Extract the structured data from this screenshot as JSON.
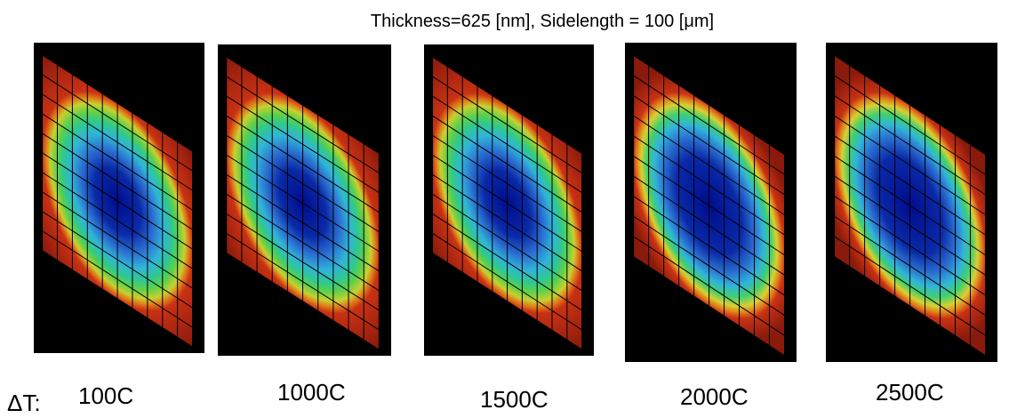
{
  "title": "Thickness=625 [nm], Sidelength = 100 [μm]",
  "delta_label": "ΔT:",
  "panels": [
    {
      "label": "100C"
    },
    {
      "label": "1000C"
    },
    {
      "label": "1500C"
    },
    {
      "label": "2000C"
    },
    {
      "label": "2500C"
    }
  ]
}
